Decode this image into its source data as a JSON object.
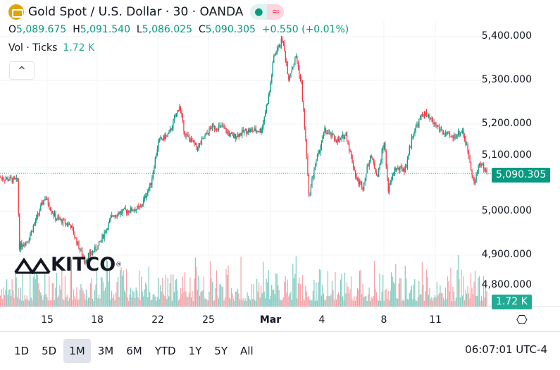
{
  "header": {
    "symbol": "Gold Spot / U.S. Dollar · 30 · OANDA",
    "market_status_icon": "green-dot-icon",
    "delayed_icon": "approx-icon"
  },
  "ohlc": {
    "o_label": "O",
    "o": "5,089.675",
    "h_label": "H",
    "h": "5,091.540",
    "l_label": "L",
    "l": "5,086.025",
    "c_label": "C",
    "c": "5,090.305",
    "change": "+0.550 (+0.01%)"
  },
  "volume": {
    "label": "Vol · Ticks",
    "value": "1.72 K"
  },
  "collapse_icon": "^",
  "logo": {
    "text": "KITCO",
    "reg": "®"
  },
  "price_axis": {
    "labels": [
      "5,400.000",
      "5,300.000",
      "5,200.000",
      "5,100.000",
      "5,000.000",
      "4,900.000",
      "4,800.000"
    ]
  },
  "last_price": {
    "value": "5,090.305",
    "color": "#089981"
  },
  "last_volume": {
    "value": "1.72 K",
    "color": "#22ab94"
  },
  "time_axis": [
    "15",
    "18",
    "22",
    "25",
    "Mar",
    "4",
    "8",
    "11"
  ],
  "settings_icon": "⎔",
  "ranges": [
    "1D",
    "5D",
    "1M",
    "3M",
    "6M",
    "YTD",
    "1Y",
    "5Y",
    "All"
  ],
  "active_range": "1M",
  "clock": "06:07:01 UTC-4",
  "colors": {
    "up": "#089981",
    "down": "#f23645",
    "vol_up": "#7fcbc0",
    "vol_down": "#f7a1a7"
  },
  "chart_data": {
    "type": "candlestick",
    "ylim": [
      4800,
      5400
    ],
    "bars": 460,
    "price_path": [
      [
        0,
        5078
      ],
      [
        17,
        5070
      ],
      [
        19,
        4920
      ],
      [
        27,
        4935
      ],
      [
        43,
        5033
      ],
      [
        53,
        4985
      ],
      [
        67,
        4968
      ],
      [
        80,
        4888
      ],
      [
        93,
        4920
      ],
      [
        107,
        4992
      ],
      [
        117,
        5000
      ],
      [
        133,
        5008
      ],
      [
        143,
        5065
      ],
      [
        150,
        5160
      ],
      [
        160,
        5177
      ],
      [
        170,
        5242
      ],
      [
        175,
        5177
      ],
      [
        187,
        5145
      ],
      [
        200,
        5193
      ],
      [
        210,
        5193
      ],
      [
        220,
        5170
      ],
      [
        233,
        5185
      ],
      [
        247,
        5185
      ],
      [
        255,
        5274
      ],
      [
        259,
        5355
      ],
      [
        267,
        5395
      ],
      [
        273,
        5306
      ],
      [
        280,
        5355
      ],
      [
        285,
        5290
      ],
      [
        290,
        5129
      ],
      [
        292,
        5033
      ],
      [
        297,
        5097
      ],
      [
        307,
        5185
      ],
      [
        320,
        5160
      ],
      [
        327,
        5177
      ],
      [
        337,
        5073
      ],
      [
        343,
        5057
      ],
      [
        350,
        5129
      ],
      [
        357,
        5081
      ],
      [
        363,
        5160
      ],
      [
        367,
        5048
      ],
      [
        373,
        5097
      ],
      [
        383,
        5097
      ],
      [
        390,
        5177
      ],
      [
        400,
        5226
      ],
      [
        410,
        5202
      ],
      [
        420,
        5177
      ],
      [
        427,
        5169
      ],
      [
        437,
        5185
      ],
      [
        443,
        5129
      ],
      [
        448,
        5061
      ],
      [
        453,
        5113
      ],
      [
        460,
        5090
      ]
    ]
  }
}
